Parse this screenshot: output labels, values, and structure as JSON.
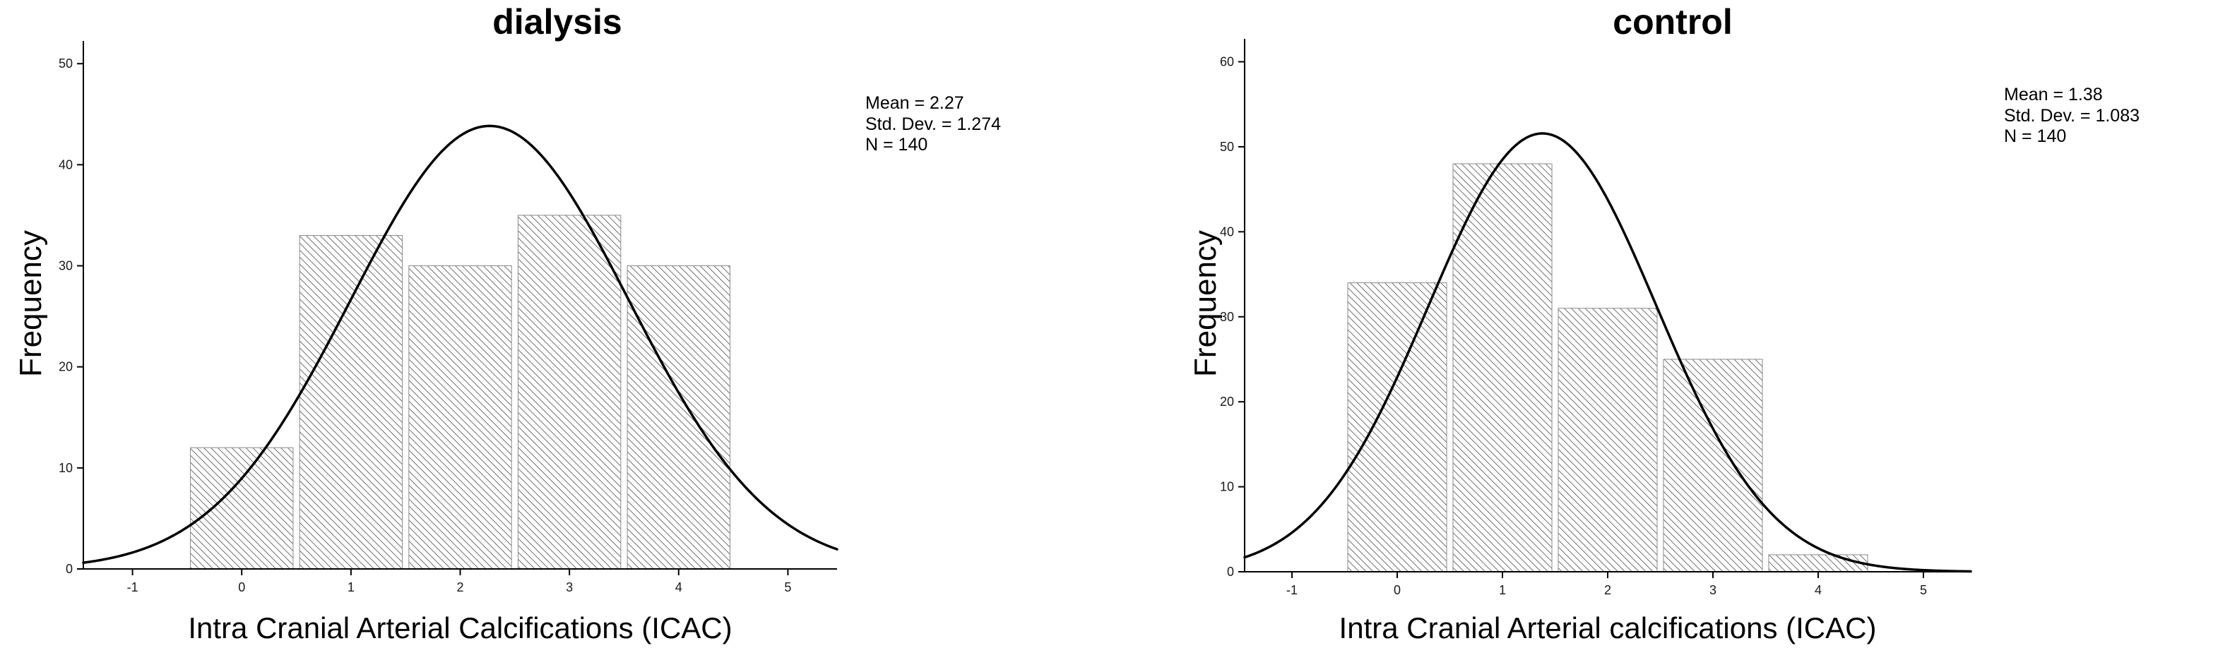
{
  "page": {
    "background": "#ffffff",
    "curve_color": "#000000",
    "hatch_color": "#5f5f5f"
  },
  "chart_data": [
    {
      "type": "bar",
      "subtype": "histogram_with_normal_curve",
      "title": "dialysis",
      "xlabel": "Intra Cranial Arterial Calcifications (ICAC)",
      "ylabel": "Frequency",
      "categories": [
        0,
        1,
        2,
        3,
        4
      ],
      "values": [
        12,
        33,
        30,
        35,
        30
      ],
      "bar_width": 0.94,
      "xlim": [
        -1.45,
        5.45
      ],
      "ylim": [
        0,
        50
      ],
      "xticks": [
        -1,
        0,
        1,
        2,
        3,
        4,
        5
      ],
      "yticks": [
        0,
        10,
        20,
        30,
        40,
        50
      ],
      "grid": false,
      "legend": "none",
      "curve": {
        "mean": 2.27,
        "sd": 1.274,
        "n": 140,
        "binwidth": 1
      },
      "stats": {
        "mean": "2.27",
        "std_dev": "1.274",
        "n": "140"
      },
      "annotation": {
        "lines": [
          "Mean = 2.27",
          "Std. Dev. = 1.274",
          "N = 140"
        ]
      }
    },
    {
      "type": "bar",
      "subtype": "histogram_with_normal_curve",
      "title": "control",
      "xlabel": "Intra Cranial Arterial calcifications (ICAC)",
      "ylabel": "Frequency",
      "categories": [
        0,
        1,
        2,
        3,
        4
      ],
      "values": [
        34,
        48,
        31,
        25,
        2
      ],
      "bar_width": 0.94,
      "xlim": [
        -1.45,
        5.45
      ],
      "ylim": [
        0,
        60
      ],
      "xticks": [
        -1,
        0,
        1,
        2,
        3,
        4,
        5
      ],
      "yticks": [
        0,
        10,
        20,
        30,
        40,
        50,
        60
      ],
      "grid": false,
      "legend": "none",
      "curve": {
        "mean": 1.38,
        "sd": 1.083,
        "n": 140,
        "binwidth": 1
      },
      "stats": {
        "mean": "1.38",
        "std_dev": "1.083",
        "n": "140"
      },
      "annotation": {
        "lines": [
          "Mean = 1.38",
          "Std. Dev. = 1.083",
          "N = 140"
        ]
      }
    }
  ]
}
